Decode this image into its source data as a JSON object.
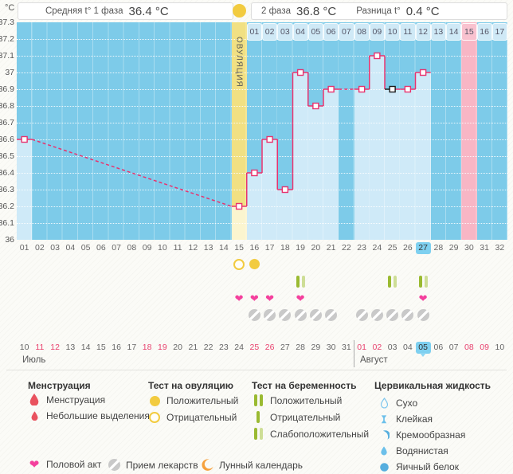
{
  "header": {
    "unit": "°C",
    "phase1_label": "Средняя t° 1 фаза",
    "phase1_value": "36.4 °C",
    "phase2_label": "2 фаза",
    "phase2_value": "36.8 °C",
    "diff_label": "Разница t°",
    "diff_value": "0.4 °C"
  },
  "chart_data": {
    "type": "line",
    "ylabel": "°C",
    "ylim": [
      36.0,
      37.3
    ],
    "ytick_labels": [
      "37.3",
      "37.2",
      "37.1",
      "37",
      "36.9",
      "36.8",
      "36.7",
      "36.6",
      "36.5",
      "36.4",
      "36.3",
      "36.2",
      "36.1",
      "36"
    ],
    "total_days": 32,
    "series": [
      {
        "day": 1,
        "temp": 36.6
      },
      {
        "day": 15,
        "temp": 36.2
      },
      {
        "day": 16,
        "temp": 36.4
      },
      {
        "day": 17,
        "temp": 36.6
      },
      {
        "day": 18,
        "temp": 36.3
      },
      {
        "day": 19,
        "temp": 37.0
      },
      {
        "day": 20,
        "temp": 36.8
      },
      {
        "day": 21,
        "temp": 36.9
      },
      {
        "day": 23,
        "temp": 36.9
      },
      {
        "day": 24,
        "temp": 37.1
      },
      {
        "day": 25,
        "temp": 36.9,
        "marker": "black"
      },
      {
        "day": 26,
        "temp": 36.9
      },
      {
        "day": 27,
        "temp": 37.0
      }
    ],
    "ovulation": {
      "day": 15,
      "label": "ОВУЛЯЦИЯ"
    },
    "expected_period_day": 30,
    "selected_day": 27,
    "phase2_start_day": 16,
    "phase2_day_numbers": [
      "01",
      "02",
      "03",
      "04",
      "05",
      "06",
      "07",
      "08",
      "09",
      "10",
      "11",
      "12",
      "13",
      "14",
      "15",
      "16",
      "17"
    ],
    "phase2_highlight_label": "15"
  },
  "day_numbers": [
    "01",
    "02",
    "03",
    "04",
    "05",
    "06",
    "07",
    "08",
    "09",
    "10",
    "11",
    "12",
    "13",
    "14",
    "15",
    "16",
    "17",
    "18",
    "19",
    "20",
    "21",
    "22",
    "23",
    "24",
    "25",
    "26",
    "27",
    "28",
    "29",
    "30",
    "31",
    "32"
  ],
  "events": {
    "ovulation_tests": [
      {
        "day": 15,
        "result": "negative"
      },
      {
        "day": 16,
        "result": "positive"
      }
    ],
    "pregnancy_tests": [
      {
        "day": 19,
        "result": "weak"
      },
      {
        "day": 25,
        "result": "weak"
      },
      {
        "day": 27,
        "result": "weak"
      }
    ],
    "intercourse_days": [
      15,
      16,
      17,
      19,
      27
    ],
    "medication_days": [
      16,
      17,
      18,
      19,
      20,
      21,
      23,
      24,
      25,
      26,
      27
    ]
  },
  "calendar": {
    "july_label": "Июль",
    "august_label": "Август",
    "dates": [
      {
        "label": "10"
      },
      {
        "label": "11",
        "weekend": true
      },
      {
        "label": "12",
        "weekend": true
      },
      {
        "label": "13"
      },
      {
        "label": "14"
      },
      {
        "label": "15"
      },
      {
        "label": "16"
      },
      {
        "label": "17"
      },
      {
        "label": "18",
        "weekend": true
      },
      {
        "label": "19",
        "weekend": true
      },
      {
        "label": "20"
      },
      {
        "label": "21"
      },
      {
        "label": "22"
      },
      {
        "label": "23"
      },
      {
        "label": "24"
      },
      {
        "label": "25",
        "weekend": true
      },
      {
        "label": "26",
        "weekend": true
      },
      {
        "label": "27"
      },
      {
        "label": "28"
      },
      {
        "label": "29"
      },
      {
        "label": "30"
      },
      {
        "label": "31"
      },
      {
        "label": "01",
        "weekend": true
      },
      {
        "label": "02",
        "weekend": true
      },
      {
        "label": "03"
      },
      {
        "label": "04"
      },
      {
        "label": "05",
        "selected": true
      },
      {
        "label": "06"
      },
      {
        "label": "07"
      },
      {
        "label": "08",
        "weekend": true
      },
      {
        "label": "09",
        "weekend": true
      },
      {
        "label": "10"
      }
    ],
    "august_start_index": 22
  },
  "legend": {
    "menstruation": {
      "title": "Менструация",
      "items": [
        "Менструация",
        "Небольшие выделения"
      ]
    },
    "ovulation_test": {
      "title": "Тест на овуляцию",
      "positive": "Положительный",
      "negative": "Отрицательный"
    },
    "pregnancy_test": {
      "title": "Тест на беременность",
      "positive": "Положительный",
      "negative": "Отрицательный",
      "weak": "Слабоположительный"
    },
    "cervical_fluid": {
      "title": "Цервикальная жидкость",
      "items": [
        "Сухо",
        "Клейкая",
        "Кремообразная",
        "Водянистая",
        "Яичный белок"
      ]
    },
    "intercourse": "Половой акт",
    "medication": "Прием лекарств",
    "lunar": "Лунный календарь"
  },
  "icons": {
    "intercourse-icon": "❤"
  },
  "colors": {
    "line_pink": "#e8326e",
    "marker_black": "#1a1a1a",
    "chart_blue": "#7dcbe9",
    "chart_blue_light": "#cfeaf8",
    "ovulation_yellow": "#f1e083",
    "ovulation_yellow_light": "#fbf5cf",
    "period_pink": "#f8b6c5",
    "period_pink_cell": "#f9c2cf",
    "selected_blue": "#7ed0f0",
    "test_gold": "#f2cb3f",
    "heart_pink": "#f4409d",
    "medication_gray": "#c9c9c9",
    "pregnancy_bar_dark": "#9aba31",
    "pregnancy_bar_pale": "#cede96",
    "weekend_red": "#e8426e",
    "menstruation_red": "#e9525e",
    "moon_orange": "#f6a13c",
    "fluid_blue": "#56aede"
  }
}
